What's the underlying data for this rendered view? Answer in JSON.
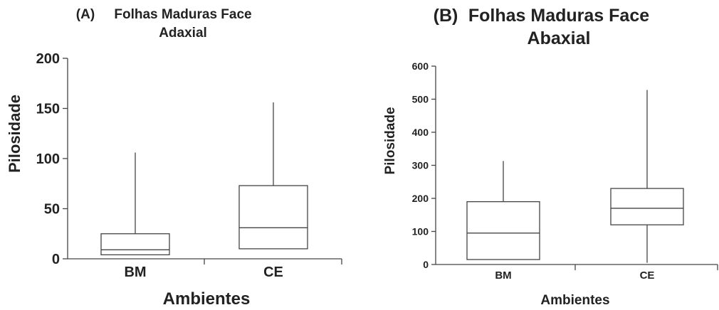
{
  "chart_data": [
    {
      "type": "box",
      "panel": "(A)",
      "title_lines": [
        "Folhas Maduras Face",
        "Adaxial"
      ],
      "xlabel": "Ambientes",
      "ylabel": "Pilosidade",
      "ylim": [
        0,
        200
      ],
      "yticks": [
        0,
        50,
        100,
        150,
        200
      ],
      "categories": [
        "BM",
        "CE"
      ],
      "boxes": [
        {
          "min": 4,
          "q1": 4,
          "median": 9,
          "q3": 25,
          "max": 106
        },
        {
          "min": 10,
          "q1": 10,
          "median": 31,
          "q3": 73,
          "max": 156
        }
      ]
    },
    {
      "type": "box",
      "panel": "(B)",
      "title_lines": [
        "Folhas Maduras Face",
        "Abaxial"
      ],
      "xlabel": "Ambientes",
      "ylabel": "Pilosidade",
      "ylim": [
        0,
        600
      ],
      "yticks": [
        0,
        100,
        200,
        300,
        400,
        500,
        600
      ],
      "categories": [
        "BM",
        "CE"
      ],
      "boxes": [
        {
          "min": 15,
          "q1": 15,
          "median": 95,
          "q3": 190,
          "max": 313
        },
        {
          "min": 5,
          "q1": 120,
          "median": 170,
          "q3": 230,
          "max": 528
        }
      ]
    }
  ]
}
